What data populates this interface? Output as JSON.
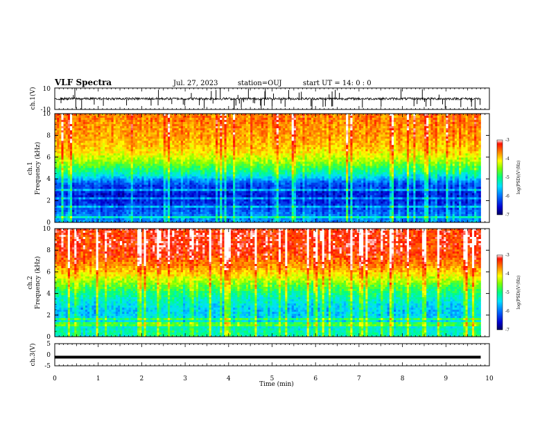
{
  "header": {
    "title": "VLF Spectra",
    "date": "Jul. 27, 2023",
    "station": "station=OUJ",
    "start": "start UT =  14: 0  : 0"
  },
  "colors": {
    "waveform": "#000000",
    "spectrogram_scale": [
      "#0000a0",
      "#0050ff",
      "#00c8ff",
      "#00ff9a",
      "#6cff00",
      "#ffff00",
      "#ff9600",
      "#ff2000"
    ]
  },
  "chart_data": [
    {
      "type": "line",
      "panel": "ch1-waveform",
      "ylabel": "ch.1(V)",
      "ylim": [
        -10,
        10
      ],
      "y_ticks": [
        "10",
        "-10"
      ],
      "xlim": [
        0,
        10
      ],
      "baseline": 0,
      "series": [
        {
          "values_note_free": true,
          "range_typical": [
            -2,
            2
          ],
          "spikes_to": [
            -10,
            10
          ]
        }
      ]
    },
    {
      "type": "heatmap",
      "panel": "ch1-spectrogram",
      "ylabel": "ch.1",
      "ylabel2": "Frequency (kHz)",
      "ylim": [
        0,
        10
      ],
      "y_ticks": [
        "0",
        "2",
        "4",
        "6",
        "8",
        "10"
      ],
      "xlim": [
        0,
        9.8
      ],
      "colorbar": {
        "label": "log(PSD)(V²/Hz)",
        "ticks": [
          "-3",
          "-4",
          "-5",
          "-6",
          "-7"
        ],
        "range": [
          -7,
          -3
        ]
      },
      "profile": [
        {
          "f": 0.5,
          "v": -5.9
        },
        {
          "f": 1.5,
          "v": -6.3
        },
        {
          "f": 2.5,
          "v": -6.5
        },
        {
          "f": 3.5,
          "v": -6.2
        },
        {
          "f": 4.5,
          "v": -5.2
        },
        {
          "f": 5.5,
          "v": -4.5
        },
        {
          "f": 6.5,
          "v": -4.0
        },
        {
          "f": 7.5,
          "v": -3.8
        },
        {
          "f": 8.5,
          "v": -3.7
        },
        {
          "f": 9.5,
          "v": -3.6
        }
      ]
    },
    {
      "type": "heatmap",
      "panel": "ch2-spectrogram",
      "ylabel": "ch.2",
      "ylabel2": "Frequency (kHz)",
      "ylim": [
        0,
        10
      ],
      "y_ticks": [
        "0",
        "2",
        "4",
        "6",
        "8",
        "10"
      ],
      "xlim": [
        0,
        9.8
      ],
      "colorbar": {
        "label": "log(PSD)(V²/Hz)",
        "ticks": [
          "-3",
          "-4",
          "-5",
          "-6",
          "-7"
        ],
        "range": [
          -7,
          -3
        ]
      },
      "profile": [
        {
          "f": 0.5,
          "v": -5.2
        },
        {
          "f": 1.5,
          "v": -5.5
        },
        {
          "f": 2.5,
          "v": -5.6
        },
        {
          "f": 3.5,
          "v": -5.3
        },
        {
          "f": 4.5,
          "v": -4.8
        },
        {
          "f": 5.5,
          "v": -4.2
        },
        {
          "f": 6.5,
          "v": -3.7
        },
        {
          "f": 7.5,
          "v": -3.4
        },
        {
          "f": 8.5,
          "v": -3.3
        },
        {
          "f": 9.5,
          "v": -3.3
        }
      ]
    },
    {
      "type": "line",
      "panel": "ch3-waveform",
      "ylabel": "ch.3(V)",
      "ylim": [
        -5,
        5
      ],
      "y_ticks": [
        "5",
        "0",
        "-5"
      ],
      "xlim": [
        0,
        10
      ],
      "series": [
        {
          "values": [
            -1.1,
            -1.1
          ]
        }
      ]
    }
  ],
  "xaxis": {
    "label": "Time (min)",
    "ticks": [
      "0",
      "1",
      "2",
      "3",
      "4",
      "5",
      "6",
      "7",
      "8",
      "9",
      "10"
    ],
    "range": [
      0,
      10
    ]
  }
}
